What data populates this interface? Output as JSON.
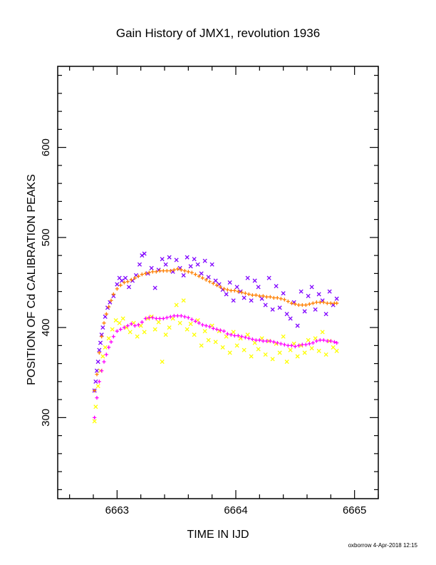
{
  "chart_data": {
    "type": "scatter",
    "title": "Gain History of JMX1, revolution 1936",
    "xlabel": "TIME IN IJD",
    "ylabel": "POSITION OF Cd CALIBRATION PEAKS",
    "xlim": [
      6662.5,
      6665.2
    ],
    "ylim": [
      210,
      690
    ],
    "x_ticks": [
      6663,
      6664,
      6665
    ],
    "y_ticks": [
      300,
      400,
      500,
      600
    ],
    "grid": false,
    "legend": "none",
    "series": [
      {
        "color": "#7f00ff",
        "marker": "x",
        "points": [
          [
            6662.81,
            330
          ],
          [
            6662.82,
            340
          ],
          [
            6662.83,
            352
          ],
          [
            6662.84,
            362
          ],
          [
            6662.85,
            375
          ],
          [
            6662.86,
            383
          ],
          [
            6662.87,
            392
          ],
          [
            6662.88,
            400
          ],
          [
            6662.9,
            412
          ],
          [
            6662.92,
            422
          ],
          [
            6662.94,
            428
          ],
          [
            6662.97,
            435
          ],
          [
            6663.0,
            448
          ],
          [
            6663.02,
            455
          ],
          [
            6663.04,
            452
          ],
          [
            6663.07,
            455
          ],
          [
            6663.1,
            445
          ],
          [
            6663.13,
            452
          ],
          [
            6663.16,
            458
          ],
          [
            6663.19,
            470
          ],
          [
            6663.21,
            480
          ],
          [
            6663.23,
            482
          ],
          [
            6663.26,
            460
          ],
          [
            6663.29,
            466
          ],
          [
            6663.32,
            444
          ],
          [
            6663.35,
            464
          ],
          [
            6663.38,
            476
          ],
          [
            6663.41,
            470
          ],
          [
            6663.44,
            478
          ],
          [
            6663.47,
            462
          ],
          [
            6663.5,
            475
          ],
          [
            6663.53,
            466
          ],
          [
            6663.56,
            458
          ],
          [
            6663.59,
            478
          ],
          [
            6663.62,
            468
          ],
          [
            6663.65,
            476
          ],
          [
            6663.68,
            470
          ],
          [
            6663.71,
            460
          ],
          [
            6663.74,
            474
          ],
          [
            6663.77,
            456
          ],
          [
            6663.8,
            470
          ],
          [
            6663.83,
            452
          ],
          [
            6663.86,
            448
          ],
          [
            6663.89,
            442
          ],
          [
            6663.92,
            437
          ],
          [
            6663.95,
            450
          ],
          [
            6663.98,
            430
          ],
          [
            6664.01,
            445
          ],
          [
            6664.04,
            440
          ],
          [
            6664.07,
            433
          ],
          [
            6664.1,
            455
          ],
          [
            6664.13,
            430
          ],
          [
            6664.16,
            452
          ],
          [
            6664.19,
            445
          ],
          [
            6664.22,
            432
          ],
          [
            6664.25,
            425
          ],
          [
            6664.28,
            455
          ],
          [
            6664.31,
            420
          ],
          [
            6664.34,
            446
          ],
          [
            6664.37,
            422
          ],
          [
            6664.4,
            438
          ],
          [
            6664.43,
            415
          ],
          [
            6664.46,
            410
          ],
          [
            6664.49,
            428
          ],
          [
            6664.52,
            402
          ],
          [
            6664.55,
            440
          ],
          [
            6664.58,
            418
          ],
          [
            6664.61,
            435
          ],
          [
            6664.64,
            445
          ],
          [
            6664.67,
            420
          ],
          [
            6664.7,
            437
          ],
          [
            6664.73,
            430
          ],
          [
            6664.76,
            415
          ],
          [
            6664.79,
            440
          ],
          [
            6664.82,
            425
          ],
          [
            6664.85,
            432
          ]
        ]
      },
      {
        "color": "#ff8000",
        "marker": "+",
        "points": [
          [
            6662.81,
            330
          ],
          [
            6662.83,
            348
          ],
          [
            6662.85,
            372
          ],
          [
            6662.87,
            390
          ],
          [
            6662.89,
            405
          ],
          [
            6662.91,
            415
          ],
          [
            6662.93,
            423
          ],
          [
            6662.95,
            430
          ],
          [
            6662.97,
            437
          ],
          [
            6663.0,
            443
          ],
          [
            6663.03,
            447
          ],
          [
            6663.06,
            450
          ],
          [
            6663.09,
            451
          ],
          [
            6663.12,
            453
          ],
          [
            6663.15,
            455
          ],
          [
            6663.18,
            457
          ],
          [
            6663.21,
            459
          ],
          [
            6663.24,
            460
          ],
          [
            6663.27,
            461
          ],
          [
            6663.3,
            462
          ],
          [
            6663.33,
            462
          ],
          [
            6663.36,
            463
          ],
          [
            6663.39,
            463
          ],
          [
            6663.42,
            463
          ],
          [
            6663.45,
            463
          ],
          [
            6663.48,
            464
          ],
          [
            6663.51,
            465
          ],
          [
            6663.54,
            464
          ],
          [
            6663.57,
            463
          ],
          [
            6663.6,
            462
          ],
          [
            6663.63,
            461
          ],
          [
            6663.66,
            459
          ],
          [
            6663.69,
            457
          ],
          [
            6663.72,
            455
          ],
          [
            6663.75,
            453
          ],
          [
            6663.78,
            451
          ],
          [
            6663.81,
            449
          ],
          [
            6663.84,
            447
          ],
          [
            6663.87,
            445
          ],
          [
            6663.9,
            443
          ],
          [
            6663.93,
            442
          ],
          [
            6663.96,
            441
          ],
          [
            6663.99,
            441
          ],
          [
            6664.02,
            440
          ],
          [
            6664.05,
            439
          ],
          [
            6664.08,
            438
          ],
          [
            6664.11,
            437
          ],
          [
            6664.14,
            436
          ],
          [
            6664.17,
            436
          ],
          [
            6664.2,
            435
          ],
          [
            6664.23,
            435
          ],
          [
            6664.26,
            434
          ],
          [
            6664.29,
            434
          ],
          [
            6664.32,
            433
          ],
          [
            6664.35,
            433
          ],
          [
            6664.38,
            432
          ],
          [
            6664.41,
            431
          ],
          [
            6664.44,
            429
          ],
          [
            6664.47,
            427
          ],
          [
            6664.5,
            426
          ],
          [
            6664.53,
            425
          ],
          [
            6664.56,
            425
          ],
          [
            6664.59,
            425
          ],
          [
            6664.62,
            426
          ],
          [
            6664.65,
            427
          ],
          [
            6664.68,
            428
          ],
          [
            6664.71,
            428
          ],
          [
            6664.74,
            428
          ],
          [
            6664.77,
            427
          ],
          [
            6664.8,
            427
          ],
          [
            6664.83,
            427
          ],
          [
            6664.85,
            427
          ]
        ]
      },
      {
        "color": "#ffff00",
        "marker": "x",
        "points": [
          [
            6662.81,
            296
          ],
          [
            6662.82,
            312
          ],
          [
            6662.84,
            335
          ],
          [
            6662.86,
            352
          ],
          [
            6662.88,
            368
          ],
          [
            6662.9,
            378
          ],
          [
            6662.93,
            388
          ],
          [
            6662.96,
            398
          ],
          [
            6662.99,
            408
          ],
          [
            6663.02,
            405
          ],
          [
            6663.05,
            410
          ],
          [
            6663.08,
            400
          ],
          [
            6663.11,
            395
          ],
          [
            6663.14,
            405
          ],
          [
            6663.17,
            390
          ],
          [
            6663.2,
            402
          ],
          [
            6663.23,
            395
          ],
          [
            6663.26,
            410
          ],
          [
            6663.29,
            412
          ],
          [
            6663.32,
            398
          ],
          [
            6663.35,
            406
          ],
          [
            6663.38,
            362
          ],
          [
            6663.41,
            392
          ],
          [
            6663.44,
            400
          ],
          [
            6663.47,
            410
          ],
          [
            6663.5,
            425
          ],
          [
            6663.53,
            405
          ],
          [
            6663.56,
            430
          ],
          [
            6663.59,
            398
          ],
          [
            6663.62,
            404
          ],
          [
            6663.65,
            392
          ],
          [
            6663.68,
            408
          ],
          [
            6663.71,
            380
          ],
          [
            6663.74,
            396
          ],
          [
            6663.77,
            386
          ],
          [
            6663.8,
            402
          ],
          [
            6663.83,
            384
          ],
          [
            6663.86,
            396
          ],
          [
            6663.89,
            378
          ],
          [
            6663.92,
            390
          ],
          [
            6663.95,
            372
          ],
          [
            6663.98,
            395
          ],
          [
            6664.01,
            380
          ],
          [
            6664.04,
            388
          ],
          [
            6664.07,
            375
          ],
          [
            6664.1,
            392
          ],
          [
            6664.13,
            368
          ],
          [
            6664.16,
            383
          ],
          [
            6664.19,
            376
          ],
          [
            6664.22,
            388
          ],
          [
            6664.25,
            370
          ],
          [
            6664.28,
            385
          ],
          [
            6664.31,
            365
          ],
          [
            6664.34,
            382
          ],
          [
            6664.37,
            372
          ],
          [
            6664.4,
            390
          ],
          [
            6664.43,
            362
          ],
          [
            6664.46,
            375
          ],
          [
            6664.49,
            382
          ],
          [
            6664.52,
            368
          ],
          [
            6664.55,
            380
          ],
          [
            6664.58,
            372
          ],
          [
            6664.61,
            386
          ],
          [
            6664.64,
            377
          ],
          [
            6664.67,
            388
          ],
          [
            6664.7,
            374
          ],
          [
            6664.73,
            395
          ],
          [
            6664.76,
            370
          ],
          [
            6664.79,
            385
          ],
          [
            6664.82,
            378
          ],
          [
            6664.85,
            374
          ]
        ]
      },
      {
        "color": "#ff00ff",
        "marker": "+",
        "points": [
          [
            6662.81,
            300
          ],
          [
            6662.83,
            322
          ],
          [
            6662.85,
            340
          ],
          [
            6662.87,
            352
          ],
          [
            6662.89,
            362
          ],
          [
            6662.91,
            370
          ],
          [
            6662.93,
            378
          ],
          [
            6662.95,
            384
          ],
          [
            6662.97,
            390
          ],
          [
            6663.0,
            396
          ],
          [
            6663.03,
            398
          ],
          [
            6663.06,
            400
          ],
          [
            6663.09,
            402
          ],
          [
            6663.12,
            404
          ],
          [
            6663.15,
            402
          ],
          [
            6663.18,
            403
          ],
          [
            6663.21,
            406
          ],
          [
            6663.24,
            410
          ],
          [
            6663.27,
            411
          ],
          [
            6663.3,
            411
          ],
          [
            6663.33,
            410
          ],
          [
            6663.36,
            410
          ],
          [
            6663.39,
            410
          ],
          [
            6663.42,
            411
          ],
          [
            6663.45,
            412
          ],
          [
            6663.48,
            413
          ],
          [
            6663.51,
            413
          ],
          [
            6663.54,
            413
          ],
          [
            6663.57,
            412
          ],
          [
            6663.6,
            411
          ],
          [
            6663.63,
            409
          ],
          [
            6663.66,
            407
          ],
          [
            6663.69,
            405
          ],
          [
            6663.72,
            403
          ],
          [
            6663.75,
            402
          ],
          [
            6663.78,
            401
          ],
          [
            6663.81,
            399
          ],
          [
            6663.84,
            398
          ],
          [
            6663.87,
            397
          ],
          [
            6663.9,
            396
          ],
          [
            6663.93,
            393
          ],
          [
            6663.96,
            392
          ],
          [
            6663.99,
            391
          ],
          [
            6664.02,
            391
          ],
          [
            6664.05,
            390
          ],
          [
            6664.08,
            389
          ],
          [
            6664.11,
            388
          ],
          [
            6664.14,
            387
          ],
          [
            6664.17,
            386
          ],
          [
            6664.2,
            386
          ],
          [
            6664.23,
            385
          ],
          [
            6664.26,
            385
          ],
          [
            6664.29,
            385
          ],
          [
            6664.32,
            384
          ],
          [
            6664.35,
            383
          ],
          [
            6664.38,
            382
          ],
          [
            6664.41,
            381
          ],
          [
            6664.44,
            380
          ],
          [
            6664.47,
            380
          ],
          [
            6664.5,
            379
          ],
          [
            6664.53,
            380
          ],
          [
            6664.56,
            381
          ],
          [
            6664.59,
            381
          ],
          [
            6664.62,
            382
          ],
          [
            6664.65,
            383
          ],
          [
            6664.68,
            385
          ],
          [
            6664.71,
            386
          ],
          [
            6664.74,
            386
          ],
          [
            6664.77,
            385
          ],
          [
            6664.8,
            385
          ],
          [
            6664.83,
            384
          ],
          [
            6664.85,
            383
          ]
        ]
      }
    ]
  },
  "credit": "oxborrow  4-Apr-2018 12:15"
}
